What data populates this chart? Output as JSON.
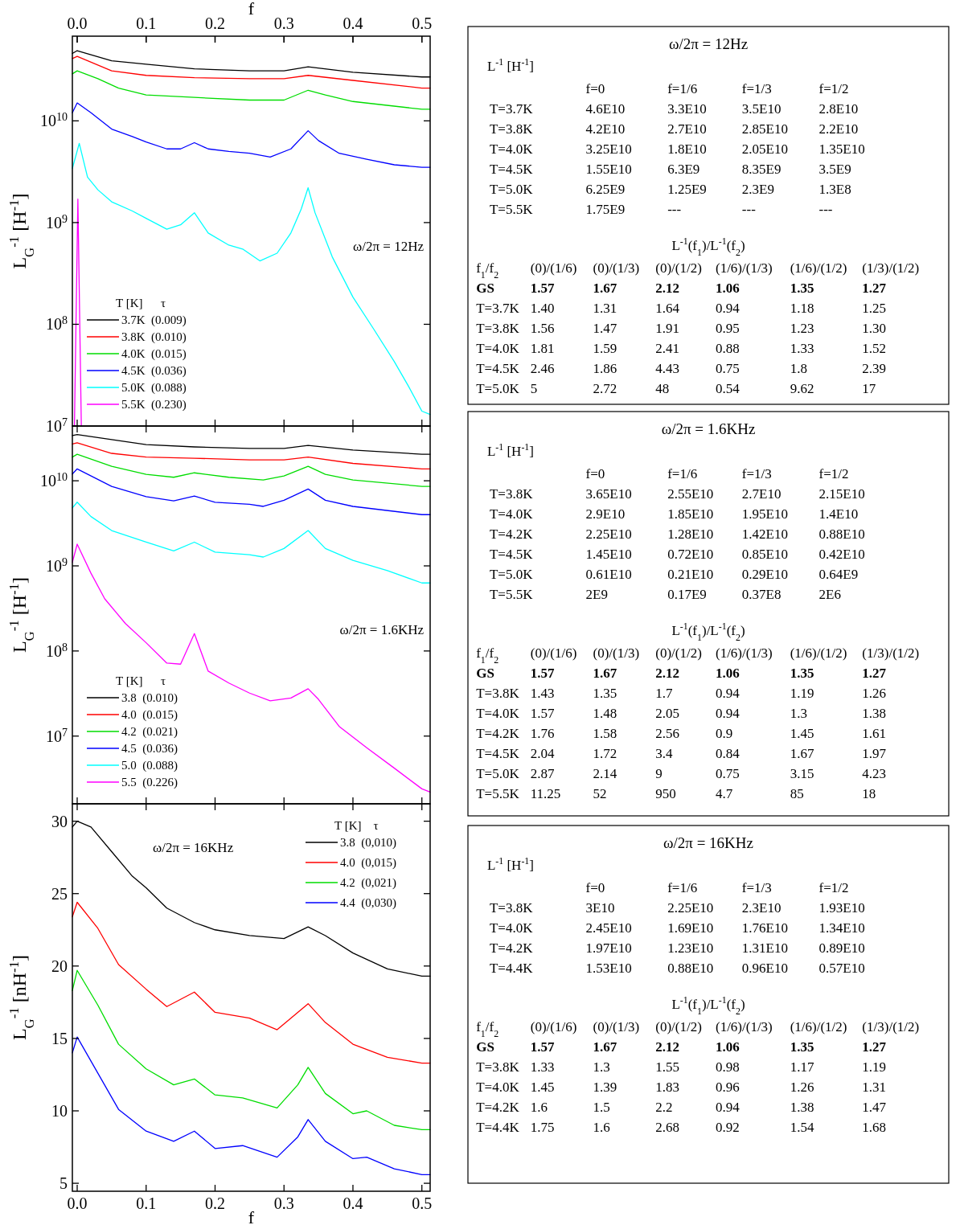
{
  "chart_data": [
    {
      "type": "line",
      "log": true,
      "xlim": [
        -0.007,
        0.512
      ],
      "xticks": [
        0,
        0.1,
        0.2,
        0.3,
        0.4,
        0.5
      ],
      "x2lim": [
        -0.007,
        0.512
      ],
      "x2ticks": [
        {
          "value": 0,
          "label": "0.0"
        },
        0.1,
        0.2,
        0.3,
        0.4,
        0.5
      ],
      "x2label": "f",
      "tick_labels": "y",
      "ylim": [
        10000000.0,
        68000000000.0
      ],
      "yticks": [
        {
          "value": 10000000.0,
          "label": "10$^{7}$"
        },
        {
          "value": 100000000.0,
          "label": "10$^{8}$"
        },
        {
          "value": 1000000000.0,
          "label": "10$^{9}$"
        },
        {
          "value": 10000000000.0,
          "label": "10$^{10}$"
        }
      ],
      "ylabel": "L$_{G}$$^{-1}$ [H$^{-1}$]",
      "legend": "bottom left",
      "legend_title": "T [K]      τ",
      "annotations": [
        "ω/2π = 12Hz"
      ],
      "series": [
        {
          "name": "3.7K  (0.009)",
          "color": "#000000",
          "x": [
            -0.007,
            0,
            0.05,
            0.1,
            0.17,
            0.25,
            0.3,
            0.335,
            0.4,
            0.5,
            0.512
          ],
          "values": [
            46000000000.0,
            49000000000.0,
            39000000000.0,
            36000000000.0,
            32500000000.0,
            31000000000.0,
            31000000000.0,
            34000000000.0,
            30000000000.0,
            27000000000.0,
            27000000000.0
          ]
        },
        {
          "name": "3.8K  (0.010)",
          "color": "#ff0000",
          "x": [
            -0.007,
            0,
            0.05,
            0.1,
            0.17,
            0.25,
            0.3,
            0.335,
            0.4,
            0.5,
            0.512
          ],
          "values": [
            41000000000.0,
            43000000000.0,
            31000000000.0,
            28000000000.0,
            26600000000.0,
            26000000000.0,
            26000000000.0,
            28000000000.0,
            25000000000.0,
            21000000000.0,
            21000000000.0
          ]
        },
        {
          "name": "4.0K  (0.015)",
          "color": "#00dd00",
          "x": [
            -0.007,
            0,
            0.03,
            0.06,
            0.1,
            0.17,
            0.25,
            0.3,
            0.335,
            0.36,
            0.4,
            0.5,
            0.512
          ],
          "values": [
            29000000000.0,
            31000000000.0,
            26000000000.0,
            21000000000.0,
            18000000000.0,
            17000000000.0,
            16000000000.0,
            16000000000.0,
            20000000000.0,
            18000000000.0,
            15500000000.0,
            13000000000.0,
            13000000000.0
          ]
        },
        {
          "name": "4.5K  (0.036)",
          "color": "#0000ff",
          "x": [
            -0.007,
            0,
            0.02,
            0.05,
            0.08,
            0.1,
            0.13,
            0.15,
            0.17,
            0.19,
            0.22,
            0.25,
            0.28,
            0.31,
            0.335,
            0.35,
            0.38,
            0.42,
            0.46,
            0.5,
            0.512
          ],
          "values": [
            12000000000.0,
            15000000000.0,
            12000000000.0,
            8300000000.0,
            7000000000.0,
            6200000000.0,
            5300000000.0,
            5300000000.0,
            6100000000.0,
            5300000000.0,
            5000000000.0,
            4800000000.0,
            4400000000.0,
            5300000000.0,
            8000000000.0,
            6400000000.0,
            4800000000.0,
            4200000000.0,
            3700000000.0,
            3500000000.0,
            3500000000.0
          ]
        },
        {
          "name": "5.0K  (0.088)",
          "color": "#00ffff",
          "x": [
            -0.007,
            0.003,
            0.015,
            0.03,
            0.05,
            0.08,
            0.1,
            0.13,
            0.15,
            0.17,
            0.19,
            0.22,
            0.24,
            0.265,
            0.29,
            0.31,
            0.325,
            0.335,
            0.345,
            0.37,
            0.4,
            0.43,
            0.46,
            0.48,
            0.5,
            0.512
          ],
          "values": [
            3400000000.0,
            6000000000.0,
            2800000000.0,
            2100000000.0,
            1600000000.0,
            1300000000.0,
            1100000000.0,
            860000000.0,
            950000000.0,
            1250000000.0,
            790000000.0,
            600000000.0,
            550000000.0,
            420000000.0,
            500000000.0,
            790000000.0,
            1360000000.0,
            2200000000.0,
            1250000000.0,
            460000000.0,
            185000000.0,
            90000000.0,
            43000000.0,
            25000000.0,
            14000000.0,
            13000000.0
          ]
        },
        {
          "name": "5.5K  (0.230)",
          "color": "#ff00ff",
          "x": [
            -0.004,
            0.001,
            0.006
          ],
          "values": [
            10000000.0,
            1700000000.0,
            10000000.0
          ]
        }
      ]
    },
    {
      "type": "other",
      "title": "ω/2π = 12Hz",
      "annotations": [
        "L$^{-1}$ [H$^{-1}$]",
        "L$^{-1}$(f$_{1}$)/L$^{-1}$(f$_{2}$)"
      ],
      "cell_labels": [
        [
          [
            null,
            "f=0",
            "f=1/6",
            "f=1/3",
            "f=1/2"
          ],
          [
            "T=3.7K",
            "4.6E10",
            "3.3E10",
            "3.5E10",
            "2.8E10"
          ],
          [
            "T=3.8K",
            "4.2E10",
            "2.7E10",
            "2.85E10",
            "2.2E10"
          ],
          [
            "T=4.0K",
            "3.25E10",
            "1.8E10",
            "2.05E10",
            "1.35E10"
          ],
          [
            "T=4.5K",
            "1.55E10",
            "6.3E9",
            "8.35E9",
            "3.5E9"
          ],
          [
            "T=5.0K",
            "6.25E9",
            "1.25E9",
            "2.3E9",
            "1.3E8"
          ],
          [
            "T=5.5K",
            "1.75E9",
            "---",
            "---",
            "---"
          ]
        ],
        [
          [
            "f$_{1}$/f$_{2}$",
            "(0)/(1/6)",
            "(0)/(1/3)",
            "(0)/(1/2)",
            "(1/6)/(1/3)",
            "(1/6)/(1/2)",
            "(1/3)/(1/2)"
          ],
          [
            "GS",
            "1.57",
            "1.67",
            "2.12",
            "1.06",
            "1.35",
            "1.27"
          ],
          [
            "T=3.7K",
            "1.40",
            "1.31",
            "1.64",
            "0.94",
            "1.18",
            "1.25"
          ],
          [
            "T=3.8K",
            "1.56",
            "1.47",
            "1.91",
            "0.95",
            "1.23",
            "1.30"
          ],
          [
            "T=4.0K",
            "1.81",
            "1.59",
            "2.41",
            "0.88",
            "1.33",
            "1.52"
          ],
          [
            "T=4.5K",
            "2.46",
            "1.86",
            "4.43",
            "0.75",
            "1.8",
            "2.39"
          ],
          [
            "T=5.0K",
            "5",
            "2.72",
            "48",
            "0.54",
            "9.62",
            "17"
          ]
        ]
      ]
    },
    {
      "type": "line",
      "log": true,
      "xlim": [
        -0.007,
        0.512
      ],
      "xticks": [
        0,
        0.1,
        0.2,
        0.3,
        0.4,
        0.5
      ],
      "tick_labels": "y",
      "ylim": [
        1600000.0,
        44000000000.0
      ],
      "yticks": [
        {
          "value": 10000000.0,
          "label": "10$^{7}$"
        },
        {
          "value": 100000000.0,
          "label": "10$^{8}$"
        },
        {
          "value": 1000000000.0,
          "label": "10$^{9}$"
        },
        {
          "value": 10000000000.0,
          "label": "10$^{10}$"
        }
      ],
      "ylabel": "L$_{G}$$^{-1}$ [H$^{-1}$]",
      "legend": "bottom left",
      "legend_title": "T [K]      τ",
      "annotations": [
        "ω/2π = 1.6KHz"
      ],
      "series": [
        {
          "name": "3.8  (0.010)",
          "color": "#000000",
          "x": [
            -0.007,
            0,
            0.1,
            0.17,
            0.25,
            0.3,
            0.335,
            0.4,
            0.5,
            0.512
          ],
          "values": [
            34000000000.0,
            35000000000.0,
            26600000000.0,
            25000000000.0,
            24000000000.0,
            24000000000.0,
            26000000000.0,
            23000000000.0,
            20500000000.0,
            20500000000.0
          ]
        },
        {
          "name": "4.0  (0.015)",
          "color": "#ff0000",
          "x": [
            -0.007,
            0,
            0.05,
            0.1,
            0.17,
            0.25,
            0.3,
            0.335,
            0.4,
            0.5,
            0.512
          ],
          "values": [
            27000000000.0,
            28000000000.0,
            21000000000.0,
            19000000000.0,
            18400000000.0,
            17600000000.0,
            17600000000.0,
            19000000000.0,
            16000000000.0,
            13800000000.0,
            13800000000.0
          ]
        },
        {
          "name": "4.2  (0.021)",
          "color": "#00dd00",
          "x": [
            -0.007,
            0,
            0.05,
            0.1,
            0.14,
            0.17,
            0.22,
            0.27,
            0.3,
            0.335,
            0.36,
            0.4,
            0.5,
            0.512
          ],
          "values": [
            19000000000.0,
            20500000000.0,
            14800000000.0,
            11900000000.0,
            11000000000.0,
            12400000000.0,
            11000000000.0,
            10200000000.0,
            11400000000.0,
            14800000000.0,
            11900000000.0,
            10200000000.0,
            8600000000.0,
            8600000000.0
          ]
        },
        {
          "name": "4.5  (0.036)",
          "color": "#0000ff",
          "x": [
            -0.007,
            0,
            0.05,
            0.1,
            0.14,
            0.17,
            0.2,
            0.25,
            0.27,
            0.3,
            0.335,
            0.36,
            0.4,
            0.5,
            0.512
          ],
          "values": [
            12000000000.0,
            13800000000.0,
            8600000000.0,
            6500000000.0,
            5800000000.0,
            6600000000.0,
            5600000000.0,
            5300000000.0,
            5000000000.0,
            5900000000.0,
            8000000000.0,
            5900000000.0,
            5000000000.0,
            4000000000.0,
            4000000000.0
          ]
        },
        {
          "name": "5.0  (0.088)",
          "color": "#00ffff",
          "x": [
            -0.007,
            0,
            0.02,
            0.05,
            0.1,
            0.14,
            0.17,
            0.2,
            0.25,
            0.27,
            0.3,
            0.335,
            0.36,
            0.4,
            0.45,
            0.5,
            0.512
          ],
          "values": [
            4800000000.0,
            5600000000.0,
            3800000000.0,
            2600000000.0,
            1900000000.0,
            1500000000.0,
            1900000000.0,
            1450000000.0,
            1350000000.0,
            1270000000.0,
            1600000000.0,
            2600000000.0,
            1600000000.0,
            1160000000.0,
            880000000.0,
            630000000.0,
            630000000.0
          ]
        },
        {
          "name": "5.5  (0.226)",
          "color": "#ff00ff",
          "x": [
            -0.007,
            0,
            0.02,
            0.04,
            0.07,
            0.1,
            0.13,
            0.15,
            0.17,
            0.19,
            0.22,
            0.25,
            0.28,
            0.31,
            0.335,
            0.35,
            0.38,
            0.42,
            0.46,
            0.5,
            0.512
          ],
          "values": [
            1100000000.0,
            1800000000.0,
            820000000.0,
            410000000.0,
            210000000.0,
            125000000.0,
            72000000.0,
            70000000.0,
            160000000.0,
            58000000.0,
            42000000.0,
            32000000.0,
            26000000.0,
            28000000.0,
            36000000.0,
            27000000.0,
            13000000.0,
            7300000.0,
            4200000.0,
            2400000.0,
            2200000.0
          ]
        }
      ]
    },
    {
      "type": "other",
      "title": "ω/2π = 1.6KHz",
      "annotations": [
        "L$^{-1}$ [H$^{-1}$]",
        "L$^{-1}$(f$_{1}$)/L$^{-1}$(f$_{2}$)"
      ],
      "cell_labels": [
        [
          [
            null,
            "f=0",
            "f=1/6",
            "f=1/3",
            "f=1/2"
          ],
          [
            "T=3.8K",
            "3.65E10",
            "2.55E10",
            "2.7E10",
            "2.15E10"
          ],
          [
            "T=4.0K",
            "2.9E10",
            "1.85E10",
            "1.95E10",
            "1.4E10"
          ],
          [
            "T=4.2K",
            "2.25E10",
            "1.28E10",
            "1.42E10",
            "0.88E10"
          ],
          [
            "T=4.5K",
            "1.45E10",
            "0.72E10",
            "0.85E10",
            "0.42E10"
          ],
          [
            "T=5.0K",
            "0.61E10",
            "0.21E10",
            "0.29E10",
            "0.64E9"
          ],
          [
            "T=5.5K",
            "2E9",
            "0.17E9",
            "0.37E8",
            "2E6"
          ]
        ],
        [
          [
            "f$_{1}$/f$_{2}$",
            "(0)/(1/6)",
            "(0)/(1/3)",
            "(0)/(1/2)",
            "(1/6)/(1/3)",
            "(1/6)/(1/2)",
            "(1/3)/(1/2)"
          ],
          [
            "GS",
            "1.57",
            "1.67",
            "2.12",
            "1.06",
            "1.35",
            "1.27"
          ],
          [
            "T=3.8K",
            "1.43",
            "1.35",
            "1.7",
            "0.94",
            "1.19",
            "1.26"
          ],
          [
            "T=4.0K",
            "1.57",
            "1.48",
            "2.05",
            "0.94",
            "1.3",
            "1.38"
          ],
          [
            "T=4.2K",
            "1.76",
            "1.58",
            "2.56",
            "0.9",
            "1.45",
            "1.61"
          ],
          [
            "T=4.5K",
            "2.04",
            "1.72",
            "3.4",
            "0.84",
            "1.67",
            "1.97"
          ],
          [
            "T=5.0K",
            "2.87",
            "2.14",
            "9",
            "0.75",
            "3.15",
            "4.23"
          ],
          [
            "T=5.5K",
            "11.25",
            "52",
            "950",
            "4.7",
            "85",
            "18"
          ]
        ]
      ]
    },
    {
      "type": "line",
      "xlim": [
        -0.007,
        0.512
      ],
      "xticks": [
        {
          "value": 0,
          "label": "0.0"
        },
        0.1,
        0.2,
        0.3,
        0.4,
        0.5
      ],
      "xlabel": "f",
      "ylim": [
        4.45,
        31.2
      ],
      "yticks": [
        5,
        10,
        15,
        20,
        25,
        30
      ],
      "ylabel": "L$_{G}$$^{-1}$ [nH$^{-1}$]",
      "legend": "top right",
      "legend_title": "T [K]    τ",
      "annotations": [
        "ω/2π = 16KHz"
      ],
      "series": [
        {
          "name": "3.8  (0,010)",
          "color": "#000000",
          "x": [
            -0.007,
            0,
            0.02,
            0.05,
            0.08,
            0.1,
            0.13,
            0.17,
            0.2,
            0.25,
            0.3,
            0.335,
            0.36,
            0.4,
            0.45,
            0.5,
            0.512
          ],
          "values": [
            29.6,
            30,
            29.6,
            27.9,
            26.2,
            25.4,
            24,
            23,
            22.5,
            22.1,
            21.9,
            22.7,
            22.1,
            20.9,
            19.8,
            19.3,
            19.3
          ]
        },
        {
          "name": "4.0  (0,015)",
          "color": "#ff0000",
          "x": [
            -0.007,
            0,
            0.03,
            0.06,
            0.1,
            0.13,
            0.17,
            0.2,
            0.25,
            0.29,
            0.32,
            0.335,
            0.36,
            0.4,
            0.45,
            0.5,
            0.512
          ],
          "values": [
            23.4,
            24.4,
            22.6,
            20.1,
            18.4,
            17.2,
            18.2,
            16.8,
            16.4,
            15.6,
            16.8,
            17.4,
            16.1,
            14.6,
            13.7,
            13.3,
            13.3
          ]
        },
        {
          "name": "4.2  (0,021)",
          "color": "#00dd00",
          "x": [
            -0.007,
            0,
            0.03,
            0.06,
            0.1,
            0.14,
            0.17,
            0.2,
            0.24,
            0.29,
            0.32,
            0.335,
            0.36,
            0.4,
            0.42,
            0.46,
            0.5,
            0.512
          ],
          "values": [
            18.3,
            19.7,
            17.3,
            14.6,
            12.9,
            11.8,
            12.2,
            11.1,
            10.9,
            10.2,
            11.8,
            13,
            11.2,
            9.8,
            10,
            9,
            8.7,
            8.7
          ]
        },
        {
          "name": "4.4  (0,030)",
          "color": "#0000ff",
          "x": [
            -0.007,
            0,
            0.03,
            0.06,
            0.1,
            0.14,
            0.17,
            0.2,
            0.24,
            0.29,
            0.32,
            0.335,
            0.36,
            0.4,
            0.42,
            0.46,
            0.5,
            0.512
          ],
          "values": [
            14,
            15.1,
            12.6,
            10.1,
            8.6,
            7.9,
            8.6,
            7.4,
            7.6,
            6.8,
            8.2,
            9.4,
            7.9,
            6.7,
            6.8,
            6,
            5.6,
            5.6
          ]
        }
      ]
    },
    {
      "type": "other",
      "title": "ω/2π = 16KHz",
      "annotations": [
        "L$^{-1}$ [H$^{-1}$]",
        "L$^{-1}$(f$_{1}$)/L$^{-1}$(f$_{2}$)"
      ],
      "cell_labels": [
        [
          [
            null,
            "f=0",
            "f=1/6",
            "f=1/3",
            "f=1/2"
          ],
          [
            "T=3.8K",
            "3E10",
            "2.25E10",
            "2.3E10",
            "1.93E10"
          ],
          [
            "T=4.0K",
            "2.45E10",
            "1.69E10",
            "1.76E10",
            "1.34E10"
          ],
          [
            "T=4.2K",
            "1.97E10",
            "1.23E10",
            "1.31E10",
            "0.89E10"
          ],
          [
            "T=4.4K",
            "1.53E10",
            "0.88E10",
            "0.96E10",
            "0.57E10"
          ]
        ],
        [
          [
            "f$_{1}$/f$_{2}$",
            "(0)/(1/6)",
            "(0)/(1/3)",
            "(0)/(1/2)",
            "(1/6)/(1/3)",
            "(1/6)/(1/2)",
            "(1/3)/(1/2)"
          ],
          [
            "GS",
            "1.57",
            "1.67",
            "2.12",
            "1.06",
            "1.35",
            "1.27"
          ],
          [
            "T=3.8K",
            "1.33",
            "1.3",
            "1.55",
            "0.98",
            "1.17",
            "1.19"
          ],
          [
            "T=4.0K",
            "1.45",
            "1.39",
            "1.83",
            "0.96",
            "1.26",
            "1.31"
          ],
          [
            "T=4.2K",
            "1.6",
            "1.5",
            "2.2",
            "0.94",
            "1.38",
            "1.47"
          ],
          [
            "T=4.4K",
            "1.75",
            "1.6",
            "2.68",
            "0.92",
            "1.54",
            "1.68"
          ]
        ]
      ]
    }
  ]
}
